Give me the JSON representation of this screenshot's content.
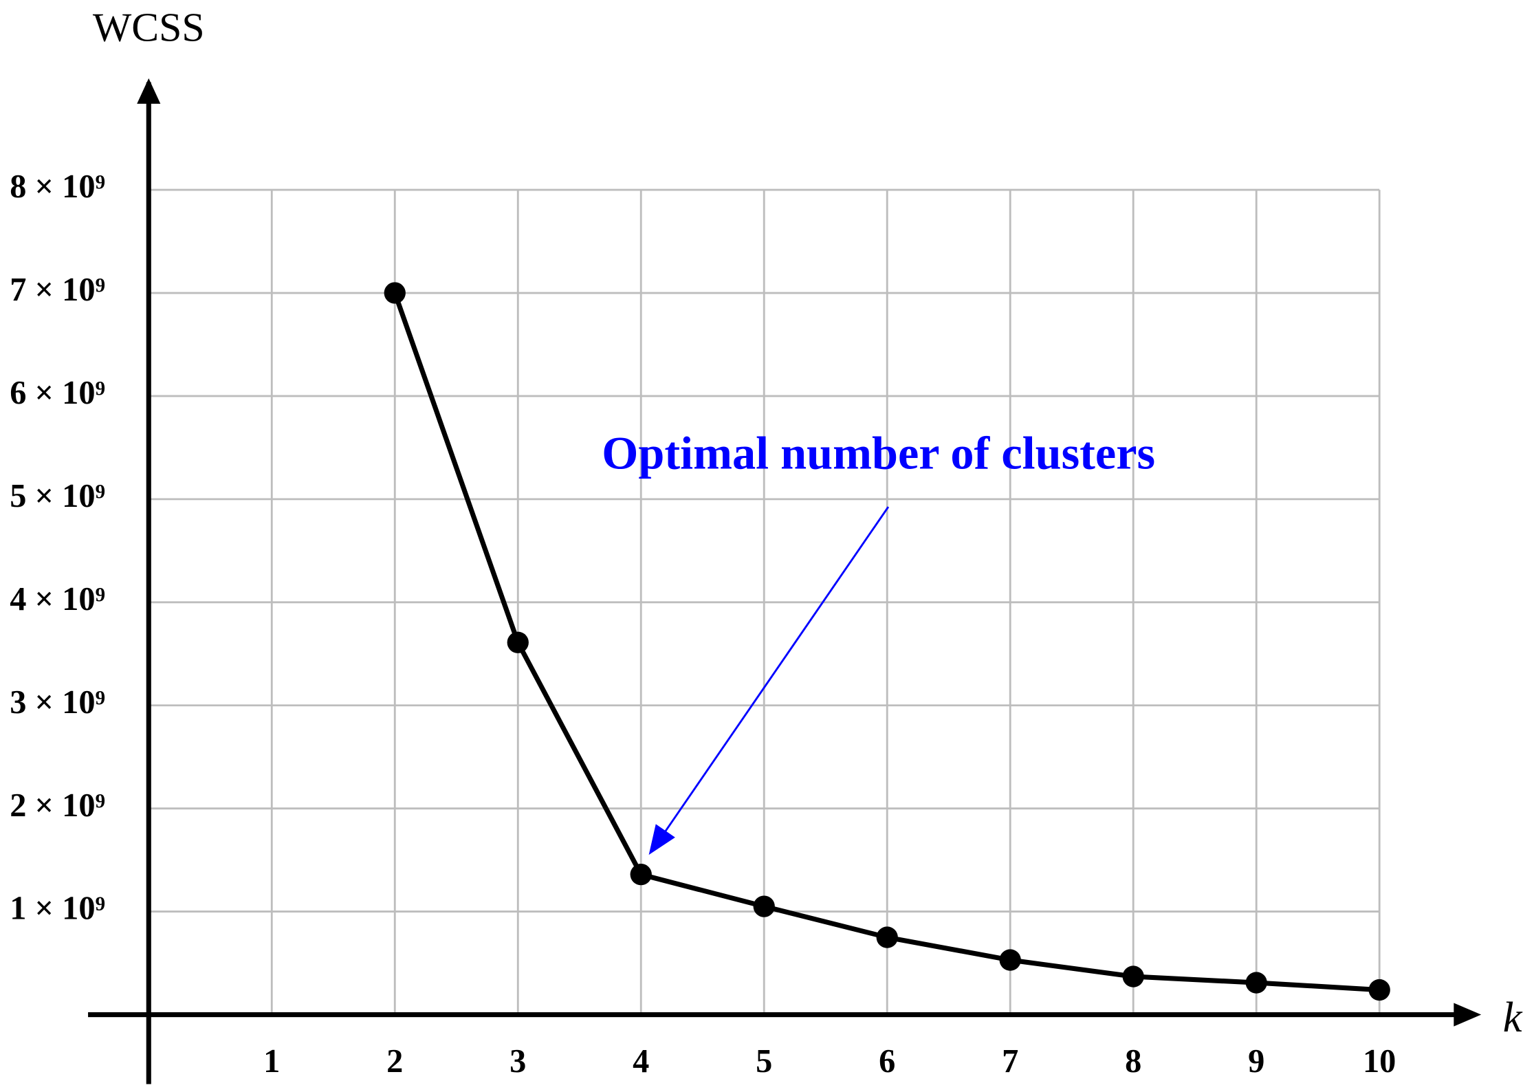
{
  "chart_data": {
    "type": "line",
    "x_label": "k",
    "y_label": "WCSS",
    "x": [
      2,
      3,
      4,
      5,
      6,
      7,
      8,
      9,
      10
    ],
    "series": [
      {
        "name": "WCSS",
        "color": "#000000",
        "values": [
          7000000000,
          3610000000,
          1360000000,
          1050000000,
          750000000,
          530000000,
          370000000,
          310000000,
          240000000
        ]
      }
    ],
    "xlim": [
      0,
      10
    ],
    "ylim": [
      0,
      8000000000
    ],
    "xticks": [
      1,
      2,
      3,
      4,
      5,
      6,
      7,
      8,
      9,
      10
    ],
    "yticks": [
      {
        "value": 1000000000,
        "label": "1 × 10⁹"
      },
      {
        "value": 2000000000,
        "label": "2 × 10⁹"
      },
      {
        "value": 3000000000,
        "label": "3 × 10⁹"
      },
      {
        "value": 4000000000,
        "label": "4 × 10⁹"
      },
      {
        "value": 5000000000,
        "label": "5 × 10⁹"
      },
      {
        "value": 6000000000,
        "label": "6 × 10⁹"
      },
      {
        "value": 7000000000,
        "label": "7 × 10⁹"
      },
      {
        "value": 8000000000,
        "label": "8 × 10⁹"
      }
    ],
    "grid": true,
    "annotation": {
      "text": "Optimal number of clusters",
      "x": 4,
      "y": 1360000000,
      "color": "#0000ff"
    }
  }
}
